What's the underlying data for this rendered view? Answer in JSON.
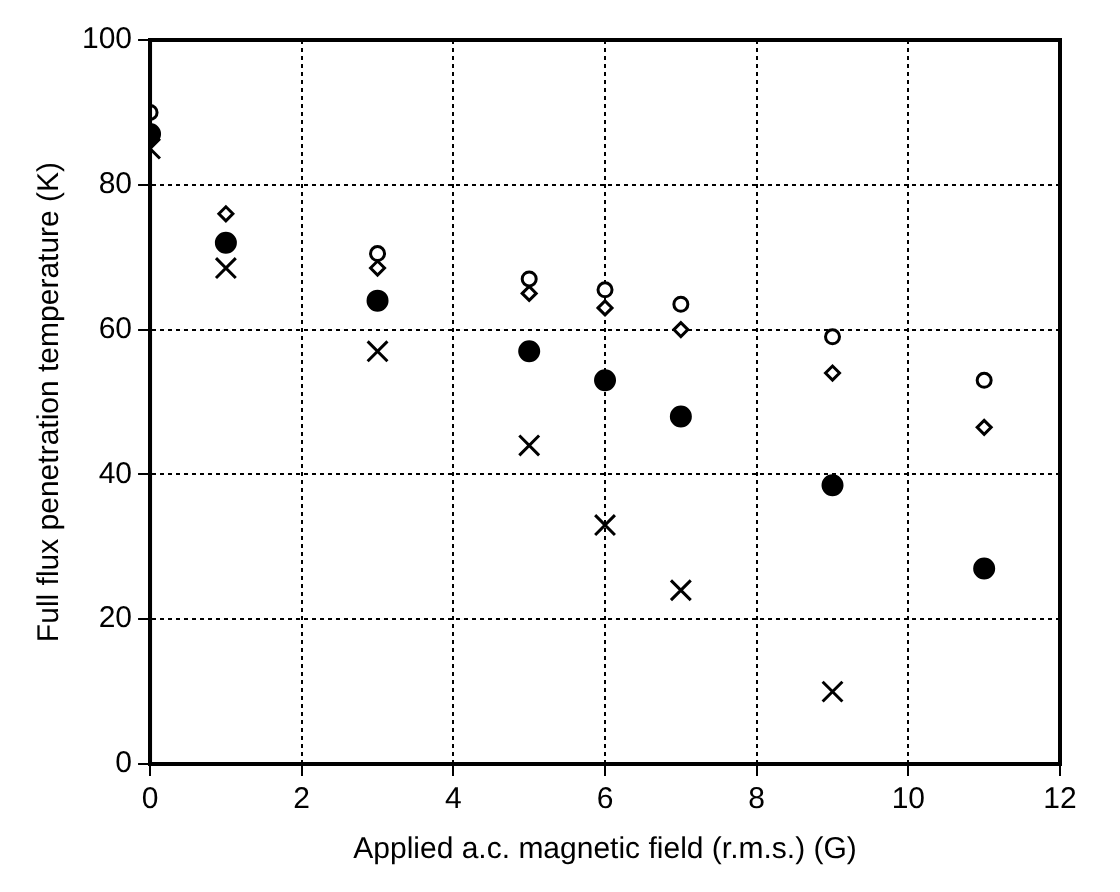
{
  "chart_data": {
    "type": "scatter",
    "xlabel": "Applied a.c. magnetic field (r.m.s.) (G)",
    "ylabel": "Full flux penetration temperature (K)",
    "xlim": [
      0,
      12
    ],
    "xticks": [
      0,
      2,
      4,
      6,
      8,
      10,
      12
    ],
    "ylim": [
      0,
      100
    ],
    "yticks": [
      0,
      20,
      40,
      60,
      80,
      100
    ],
    "grid": true,
    "legend": false,
    "series": [
      {
        "color": "#000000",
        "marker": "circle",
        "x": [
          0,
          1,
          3,
          5,
          6,
          7,
          9,
          11
        ],
        "values": [
          90,
          null,
          70.5,
          67,
          65.5,
          63.5,
          59,
          53
        ]
      },
      {
        "color": "#000000",
        "marker": "diamond",
        "x": [
          1,
          3,
          5,
          6,
          7,
          9,
          11
        ],
        "values": [
          76,
          68.5,
          65,
          63,
          60,
          54,
          46.5
        ]
      },
      {
        "color": "#000000",
        "marker": "circle",
        "x": [
          0,
          1,
          3,
          5,
          6,
          7,
          9,
          11
        ],
        "values": [
          87,
          72,
          64,
          57,
          53,
          48,
          38.5,
          27
        ]
      },
      {
        "color": "#000000",
        "marker": "cross",
        "x": [
          0,
          1,
          3,
          5,
          6,
          7,
          9
        ],
        "values": [
          85,
          68.5,
          57,
          44,
          33,
          24,
          10
        ]
      }
    ]
  }
}
